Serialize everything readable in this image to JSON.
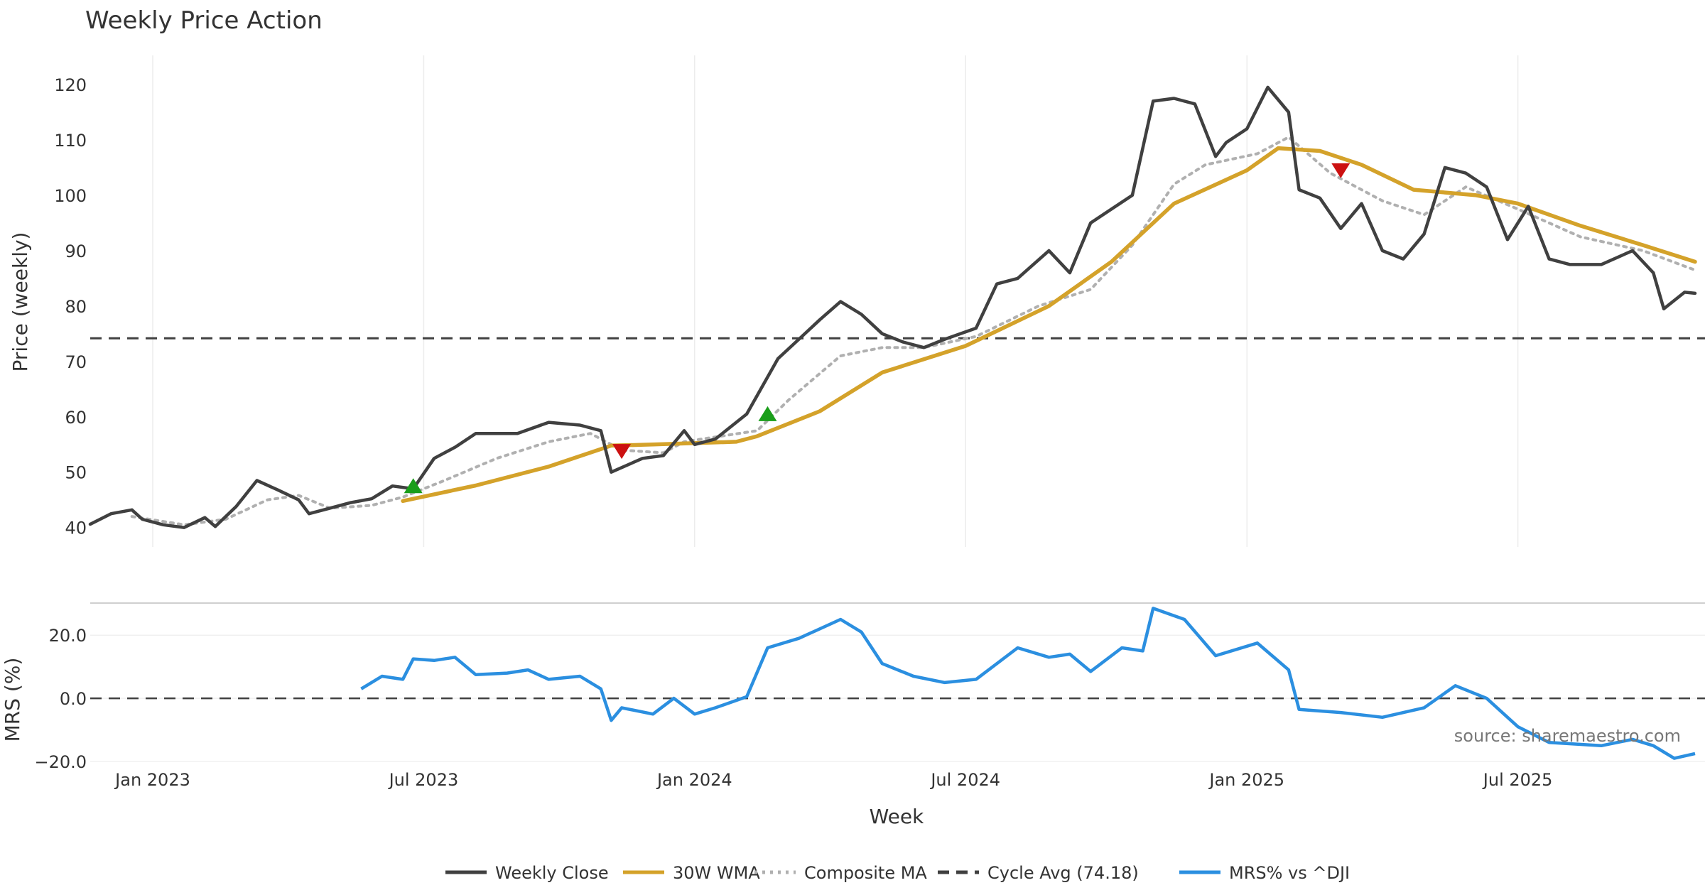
{
  "chart_data": [
    {
      "type": "line",
      "title": "Weekly Price Action",
      "ylabel": "Price (weekly)",
      "xlabel": "Week",
      "ylim": [
        36.5,
        125
      ],
      "yticks": [
        40,
        50,
        60,
        70,
        80,
        90,
        100,
        110,
        120
      ],
      "x_range": [
        "2022-11-21",
        "2025-11-03"
      ],
      "x_ticks": [
        "2023-01-02",
        "2023-07-03",
        "2024-01-01",
        "2024-07-01",
        "2025-01-06",
        "2025-07-07"
      ],
      "x_tick_labels": [
        "Jan 2023",
        "Jul 2023",
        "Jan 2024",
        "Jul 2024",
        "Jan 2025",
        "Jul 2025"
      ],
      "grid": "vertical",
      "series": [
        {
          "name": "Weekly Close",
          "color": "#404040",
          "points": [
            [
              "2022-11-21",
              40.6
            ],
            [
              "2022-12-05",
              42.5
            ],
            [
              "2022-12-19",
              43.2
            ],
            [
              "2022-12-26",
              41.5
            ],
            [
              "2023-01-09",
              40.5
            ],
            [
              "2023-01-23",
              40.0
            ],
            [
              "2023-02-06",
              41.8
            ],
            [
              "2023-02-13",
              40.2
            ],
            [
              "2023-02-27",
              43.8
            ],
            [
              "2023-03-13",
              48.5
            ],
            [
              "2023-03-27",
              46.8
            ],
            [
              "2023-04-10",
              45.0
            ],
            [
              "2023-04-17",
              42.5
            ],
            [
              "2023-05-01",
              43.5
            ],
            [
              "2023-05-15",
              44.5
            ],
            [
              "2023-05-29",
              45.2
            ],
            [
              "2023-06-12",
              47.5
            ],
            [
              "2023-06-26",
              47.0
            ],
            [
              "2023-07-10",
              52.5
            ],
            [
              "2023-07-24",
              54.5
            ],
            [
              "2023-08-07",
              57.0
            ],
            [
              "2023-08-21",
              57.0
            ],
            [
              "2023-09-04",
              57.0
            ],
            [
              "2023-09-25",
              59.0
            ],
            [
              "2023-10-16",
              58.5
            ],
            [
              "2023-10-30",
              57.5
            ],
            [
              "2023-11-06",
              50.0
            ],
            [
              "2023-11-27",
              52.5
            ],
            [
              "2023-12-11",
              53.0
            ],
            [
              "2023-12-25",
              57.5
            ],
            [
              "2024-01-01",
              55.0
            ],
            [
              "2024-01-15",
              56.0
            ],
            [
              "2024-02-05",
              60.5
            ],
            [
              "2024-02-26",
              70.5
            ],
            [
              "2024-03-11",
              74.0
            ],
            [
              "2024-03-25",
              77.5
            ],
            [
              "2024-04-08",
              80.8
            ],
            [
              "2024-04-22",
              78.5
            ],
            [
              "2024-05-06",
              75.0
            ],
            [
              "2024-05-20",
              73.5
            ],
            [
              "2024-06-03",
              72.5
            ],
            [
              "2024-06-17",
              74.0
            ],
            [
              "2024-07-08",
              76.0
            ],
            [
              "2024-07-22",
              84.0
            ],
            [
              "2024-08-05",
              85.0
            ],
            [
              "2024-08-26",
              90.0
            ],
            [
              "2024-09-09",
              86.0
            ],
            [
              "2024-09-23",
              95.0
            ],
            [
              "2024-10-07",
              97.5
            ],
            [
              "2024-10-21",
              100.0
            ],
            [
              "2024-11-04",
              117.0
            ],
            [
              "2024-11-18",
              117.5
            ],
            [
              "2024-12-02",
              116.5
            ],
            [
              "2024-12-16",
              107.0
            ],
            [
              "2024-12-23",
              109.5
            ],
            [
              "2025-01-06",
              112.0
            ],
            [
              "2025-01-20",
              119.5
            ],
            [
              "2025-02-03",
              115.0
            ],
            [
              "2025-02-10",
              101.0
            ],
            [
              "2025-02-24",
              99.5
            ],
            [
              "2025-03-10",
              94.0
            ],
            [
              "2025-03-24",
              98.5
            ],
            [
              "2025-04-07",
              90.0
            ],
            [
              "2025-04-21",
              88.5
            ],
            [
              "2025-05-05",
              93.0
            ],
            [
              "2025-05-19",
              105.0
            ],
            [
              "2025-06-02",
              104.0
            ],
            [
              "2025-06-16",
              101.5
            ],
            [
              "2025-06-30",
              92.0
            ],
            [
              "2025-07-14",
              98.0
            ],
            [
              "2025-07-28",
              88.5
            ],
            [
              "2025-08-11",
              87.5
            ],
            [
              "2025-09-01",
              87.5
            ],
            [
              "2025-09-22",
              90.0
            ],
            [
              "2025-10-06",
              86.0
            ],
            [
              "2025-10-13",
              79.5
            ],
            [
              "2025-10-27",
              82.5
            ],
            [
              "2025-11-03",
              82.3
            ]
          ]
        },
        {
          "name": "30W WMA",
          "color": "#d4a22a",
          "points": [
            [
              "2023-06-19",
              44.8
            ],
            [
              "2023-08-07",
              47.6
            ],
            [
              "2023-09-25",
              51.0
            ],
            [
              "2023-11-06",
              54.8
            ],
            [
              "2023-12-04",
              55.0
            ],
            [
              "2024-01-29",
              55.5
            ],
            [
              "2024-02-12",
              56.5
            ],
            [
              "2024-03-25",
              61.0
            ],
            [
              "2024-05-06",
              68.0
            ],
            [
              "2024-07-01",
              72.8
            ],
            [
              "2024-08-26",
              80.0
            ],
            [
              "2024-10-07",
              88.0
            ],
            [
              "2024-11-18",
              98.5
            ],
            [
              "2025-01-06",
              104.5
            ],
            [
              "2025-01-27",
              108.5
            ],
            [
              "2025-02-24",
              108.0
            ],
            [
              "2025-03-24",
              105.5
            ],
            [
              "2025-04-28",
              101.0
            ],
            [
              "2025-06-09",
              100.0
            ],
            [
              "2025-07-07",
              98.5
            ],
            [
              "2025-08-18",
              94.5
            ],
            [
              "2025-09-29",
              91.0
            ],
            [
              "2025-11-03",
              88.0
            ]
          ]
        },
        {
          "name": "Composite MA",
          "color": "#b0b0b0",
          "points": [
            [
              "2022-12-19",
              42.0
            ],
            [
              "2023-01-23",
              40.5
            ],
            [
              "2023-02-20",
              41.5
            ],
            [
              "2023-03-20",
              45.0
            ],
            [
              "2023-04-10",
              45.8
            ],
            [
              "2023-05-01",
              43.5
            ],
            [
              "2023-05-29",
              44.0
            ],
            [
              "2023-06-19",
              45.5
            ],
            [
              "2023-07-17",
              48.5
            ],
            [
              "2023-08-21",
              52.5
            ],
            [
              "2023-09-25",
              55.5
            ],
            [
              "2023-10-23",
              57.0
            ],
            [
              "2023-11-13",
              54.0
            ],
            [
              "2023-12-11",
              53.5
            ],
            [
              "2023-12-25",
              55.5
            ],
            [
              "2024-02-12",
              57.5
            ],
            [
              "2024-03-04",
              63.0
            ],
            [
              "2024-04-08",
              71.0
            ],
            [
              "2024-05-06",
              72.5
            ],
            [
              "2024-06-03",
              72.5
            ],
            [
              "2024-07-08",
              74.5
            ],
            [
              "2024-08-19",
              80.0
            ],
            [
              "2024-09-23",
              83.0
            ],
            [
              "2024-10-21",
              91.0
            ],
            [
              "2024-11-18",
              102.0
            ],
            [
              "2024-12-09",
              105.5
            ],
            [
              "2025-01-13",
              107.5
            ],
            [
              "2025-02-03",
              110.5
            ],
            [
              "2025-03-03",
              104.0
            ],
            [
              "2025-04-07",
              99.0
            ],
            [
              "2025-05-05",
              96.5
            ],
            [
              "2025-06-02",
              101.5
            ],
            [
              "2025-07-07",
              97.5
            ],
            [
              "2025-08-18",
              92.5
            ],
            [
              "2025-09-29",
              90.0
            ],
            [
              "2025-11-03",
              86.5
            ]
          ]
        }
      ],
      "reference_line": {
        "name": "Cycle Avg (74.18)",
        "value": 74.18,
        "color": "#404040"
      },
      "markers": [
        {
          "type": "buy",
          "x": "2023-06-26",
          "y": 47.5,
          "color": "#1a9e1a"
        },
        {
          "type": "sell",
          "x": "2023-11-13",
          "y": 53.8,
          "color": "#cc1111"
        },
        {
          "type": "buy",
          "x": "2024-02-19",
          "y": 60.5,
          "color": "#1a9e1a"
        },
        {
          "type": "sell",
          "x": "2025-03-10",
          "y": 104.5,
          "color": "#cc1111"
        }
      ]
    },
    {
      "type": "line",
      "ylabel": "MRS (%)",
      "ylim": [
        -20.0,
        29.5
      ],
      "yticks": [
        20.0,
        0.0,
        -20.0
      ],
      "ytick_labels": [
        "20.0",
        "0.0",
        "−20.0"
      ],
      "series": [
        {
          "name": "MRS% vs ^DJI",
          "color": "#2b8fe0",
          "points": [
            [
              "2023-05-22",
              3.0
            ],
            [
              "2023-06-05",
              7.0
            ],
            [
              "2023-06-19",
              6.0
            ],
            [
              "2023-06-26",
              12.5
            ],
            [
              "2023-07-10",
              12.0
            ],
            [
              "2023-07-24",
              13.0
            ],
            [
              "2023-08-07",
              7.5
            ],
            [
              "2023-08-28",
              8.0
            ],
            [
              "2023-09-11",
              9.0
            ],
            [
              "2023-09-25",
              6.0
            ],
            [
              "2023-10-16",
              7.0
            ],
            [
              "2023-10-30",
              3.0
            ],
            [
              "2023-11-06",
              -7.0
            ],
            [
              "2023-11-13",
              -3.0
            ],
            [
              "2023-12-04",
              -5.0
            ],
            [
              "2023-12-18",
              0.0
            ],
            [
              "2024-01-01",
              -5.0
            ],
            [
              "2024-01-15",
              -3.0
            ],
            [
              "2024-02-05",
              0.5
            ],
            [
              "2024-02-19",
              16.0
            ],
            [
              "2024-03-11",
              19.0
            ],
            [
              "2024-04-08",
              25.0
            ],
            [
              "2024-04-22",
              21.0
            ],
            [
              "2024-05-06",
              11.0
            ],
            [
              "2024-05-27",
              7.0
            ],
            [
              "2024-06-17",
              5.0
            ],
            [
              "2024-07-08",
              6.0
            ],
            [
              "2024-08-05",
              16.0
            ],
            [
              "2024-08-26",
              13.0
            ],
            [
              "2024-09-09",
              14.0
            ],
            [
              "2024-09-23",
              8.5
            ],
            [
              "2024-10-14",
              16.0
            ],
            [
              "2024-10-28",
              15.0
            ],
            [
              "2024-11-04",
              28.5
            ],
            [
              "2024-11-25",
              25.0
            ],
            [
              "2024-12-16",
              13.5
            ],
            [
              "2025-01-13",
              17.5
            ],
            [
              "2025-02-03",
              9.0
            ],
            [
              "2025-02-10",
              -3.5
            ],
            [
              "2025-03-10",
              -4.5
            ],
            [
              "2025-04-07",
              -6.0
            ],
            [
              "2025-05-05",
              -3.0
            ],
            [
              "2025-05-26",
              4.0
            ],
            [
              "2025-06-16",
              0.0
            ],
            [
              "2025-07-07",
              -9.0
            ],
            [
              "2025-07-28",
              -14.0
            ],
            [
              "2025-09-01",
              -15.0
            ],
            [
              "2025-09-22",
              -13.0
            ],
            [
              "2025-10-06",
              -15.0
            ],
            [
              "2025-10-20",
              -19.0
            ],
            [
              "2025-11-03",
              -17.5
            ]
          ]
        }
      ],
      "reference_line": {
        "value": 0.0,
        "color": "#404040"
      }
    }
  ],
  "legend": {
    "placement": "bottom-center",
    "items": [
      {
        "label": "Weekly Close",
        "style": "solid",
        "color": "#404040"
      },
      {
        "label": "30W WMA",
        "style": "solid",
        "color": "#d4a22a"
      },
      {
        "label": "Composite MA",
        "style": "dotted",
        "color": "#b0b0b0"
      },
      {
        "label": "Cycle Avg (74.18)",
        "style": "dashed",
        "color": "#404040"
      },
      {
        "label": "MRS% vs ^DJI",
        "style": "solid",
        "color": "#2b8fe0"
      }
    ]
  },
  "source_text": "source: sharemaestro.com"
}
